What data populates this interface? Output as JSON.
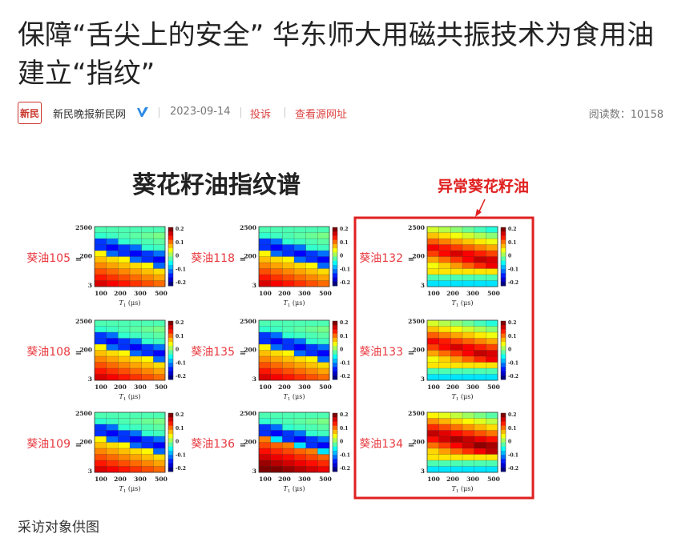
{
  "article": {
    "title": "保障“舌尖上的安全” 华东师大用磁共振技术为食用油建立“指纹”",
    "source": "新民晚报新民网",
    "logo_text": "新民",
    "date": "2023-09-14",
    "report_label": "投诉",
    "view_source_label": "查看源网址",
    "read_count": "阅读数：10158",
    "caption": "采访对象供图"
  },
  "figure": {
    "title": "葵花籽油指纹谱",
    "abnormal_label": "异常葵花籽油",
    "y_ticks": [
      "2500",
      "200",
      "3"
    ],
    "x_ticks": [
      "100",
      "200",
      "300",
      "500"
    ],
    "x_axis_label": "T",
    "x_axis_sub": "1",
    "x_axis_unit": " (μs)",
    "colorbar_ticks": [
      "0.2",
      "0.1",
      "0",
      "-0.1",
      "-0.2"
    ],
    "samples": [
      {
        "label": "葵油105",
        "eq": "=",
        "type": "normal"
      },
      {
        "label": "葵油118",
        "eq": "=",
        "type": "normal"
      },
      {
        "label": "葵油132",
        "eq": "=",
        "type": "abnormal"
      },
      {
        "label": "葵油108",
        "eq": "=",
        "type": "normal"
      },
      {
        "label": "葵油135",
        "eq": "=",
        "type": "normal"
      },
      {
        "label": "葵油133",
        "eq": "=",
        "type": "abnormal"
      },
      {
        "label": "葵油109",
        "eq": "=",
        "type": "normal"
      },
      {
        "label": "葵油136",
        "eq": "=",
        "type": "normal"
      },
      {
        "label": "葵油134",
        "eq": "=",
        "type": "abnormal"
      }
    ],
    "colors": {
      "label_red": "#e8393f",
      "box_red": "#e02020"
    }
  }
}
